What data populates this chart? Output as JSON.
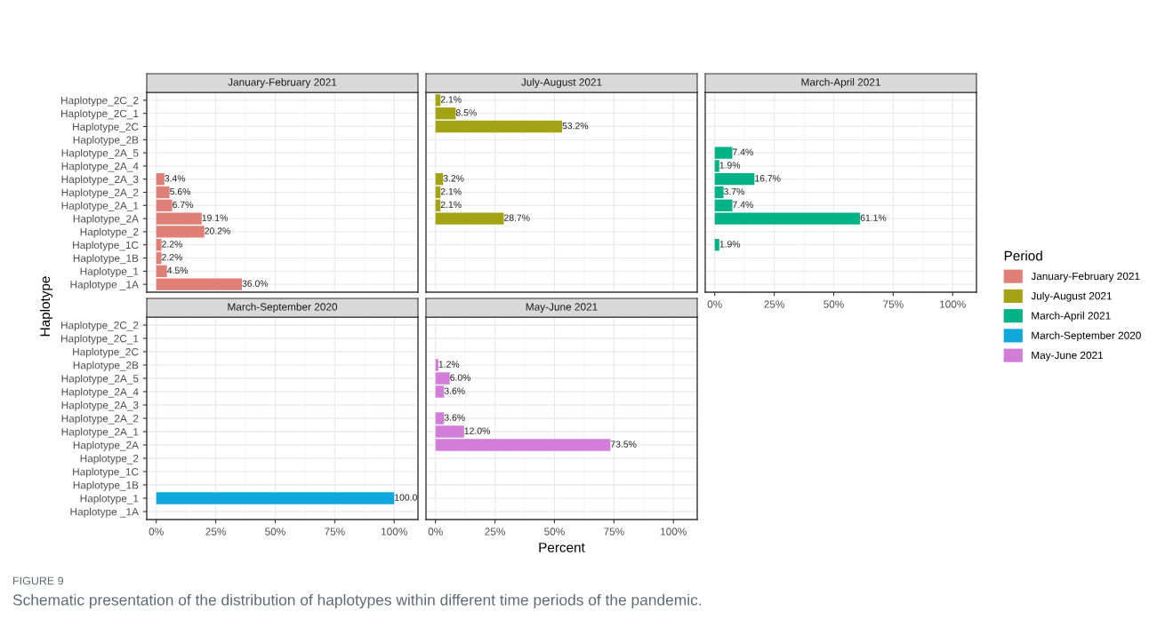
{
  "chart_data": [
    {
      "type": "bar",
      "orientation": "horizontal",
      "title": "January-February 2021",
      "ylabel": "Haplotype",
      "legend_title": "Period",
      "legend": "right",
      "grid": true,
      "tick_labels": "y",
      "xlim": [
        -4,
        110
      ],
      "xticks": [
        0,
        25,
        50,
        75,
        100
      ],
      "categories": [
        "Haplotype_2C_2",
        "Haplotype_2C_1",
        "Haplotype_2C",
        "Haplotype_2B",
        "Haplotype_2A_5",
        "Haplotype_2A_4",
        "Haplotype_2A_3",
        "Haplotype_2A_2",
        "Haplotype_2A_1",
        "Haplotype_2A",
        "Haplotype_2",
        "Haplotype_1C",
        "Haplotype_1B",
        "Haplotype_1",
        "Haplotype _1A"
      ],
      "series": [
        {
          "name": "January-February 2021",
          "color": "#e07f78",
          "values": [
            null,
            null,
            null,
            null,
            null,
            null,
            3.4,
            5.6,
            6.7,
            19.1,
            20.2,
            2.2,
            2.2,
            4.5,
            36.0
          ],
          "value_labels": [
            null,
            null,
            null,
            null,
            null,
            null,
            "3.4%",
            "5.6%",
            "6.7%",
            "19.1%",
            "20.2%",
            "2.2%",
            "2.2%",
            "4.5%",
            "36.0%"
          ]
        }
      ],
      "annotations": [
        "FIGURE 9",
        "Schematic presentation of the distribution of haplotypes within different time periods of the pandemic."
      ]
    },
    {
      "type": "bar",
      "orientation": "horizontal",
      "title": "July-August 2021",
      "legend": "right",
      "grid": true,
      "tick_labels": false,
      "xlim": [
        -4,
        110
      ],
      "xticks": [
        0,
        25,
        50,
        75,
        100
      ],
      "categories": [
        null,
        null,
        null,
        null,
        null,
        null,
        null,
        null,
        null,
        null,
        null,
        null,
        null,
        null,
        null
      ],
      "series": [
        {
          "name": "July-August 2021",
          "color": "#a3a313",
          "values": [
            2.1,
            8.5,
            53.2,
            null,
            null,
            null,
            3.2,
            2.1,
            2.1,
            28.7,
            null,
            null,
            null,
            null,
            null
          ],
          "value_labels": [
            "2.1%",
            "8.5%",
            "53.2%",
            null,
            null,
            null,
            "3.2%",
            "2.1%",
            "2.1%",
            "28.7%",
            null,
            null,
            null,
            null,
            null
          ]
        }
      ]
    },
    {
      "type": "bar",
      "orientation": "horizontal",
      "title": "March-April 2021",
      "legend": "right",
      "grid": true,
      "tick_labels": "x",
      "xlim": [
        -4,
        110
      ],
      "xticks": [
        {
          "value": 0,
          "label": "0%"
        },
        {
          "value": 25,
          "label": "25%"
        },
        {
          "value": 50,
          "label": "50%"
        },
        {
          "value": 75,
          "label": "75%"
        },
        {
          "value": 100,
          "label": "100%"
        }
      ],
      "categories": [
        null,
        null,
        null,
        null,
        null,
        null,
        null,
        null,
        null,
        null,
        null,
        null,
        null,
        null,
        null
      ],
      "series": [
        {
          "name": "March-April 2021",
          "color": "#00b386",
          "values": [
            null,
            null,
            null,
            null,
            7.4,
            1.9,
            16.7,
            3.7,
            7.4,
            61.1,
            null,
            1.9,
            null,
            null,
            null
          ],
          "value_labels": [
            null,
            null,
            null,
            null,
            "7.4%",
            "1.9%",
            "16.7%",
            "3.7%",
            "7.4%",
            "61.1%",
            null,
            "1.9%",
            null,
            null,
            null
          ]
        }
      ]
    },
    {
      "type": "bar",
      "orientation": "horizontal",
      "title": "March-September 2020",
      "legend": "right",
      "grid": true,
      "xlim": [
        -4,
        110
      ],
      "xticks": [
        {
          "value": 0,
          "label": "0%"
        },
        {
          "value": 25,
          "label": "25%"
        },
        {
          "value": 50,
          "label": "50%"
        },
        {
          "value": 75,
          "label": "75%"
        },
        {
          "value": 100,
          "label": "100%"
        }
      ],
      "categories": [
        "Haplotype_2C_2",
        "Haplotype_2C_1",
        "Haplotype_2C",
        "Haplotype_2B",
        "Haplotype_2A_5",
        "Haplotype_2A_4",
        "Haplotype_2A_3",
        "Haplotype_2A_2",
        "Haplotype_2A_1",
        "Haplotype_2A",
        "Haplotype_2",
        "Haplotype_1C",
        "Haplotype_1B",
        "Haplotype_1",
        "Haplotype _1A"
      ],
      "series": [
        {
          "name": "March-September 2020",
          "color": "#10a7db",
          "values": [
            null,
            null,
            null,
            null,
            null,
            null,
            null,
            null,
            null,
            null,
            null,
            null,
            null,
            100,
            null
          ],
          "value_labels": [
            null,
            null,
            null,
            null,
            null,
            null,
            null,
            null,
            null,
            null,
            null,
            null,
            null,
            "100.0",
            null
          ]
        }
      ]
    },
    {
      "type": "bar",
      "orientation": "horizontal",
      "title": "May-June 2021",
      "xlabel": "Percent",
      "legend": "right",
      "grid": true,
      "tick_labels": "x",
      "xlim": [
        -4,
        110
      ],
      "xticks": [
        {
          "value": 0,
          "label": "0%"
        },
        {
          "value": 25,
          "label": "25%"
        },
        {
          "value": 50,
          "label": "50%"
        },
        {
          "value": 75,
          "label": "75%"
        },
        {
          "value": 100,
          "label": "100%"
        }
      ],
      "categories": [
        null,
        null,
        null,
        null,
        null,
        null,
        null,
        null,
        null,
        null,
        null,
        null,
        null,
        null,
        null
      ],
      "series": [
        {
          "name": "May-June 2021",
          "color": "#d27ed8",
          "values": [
            null,
            null,
            null,
            1.2,
            6.0,
            3.6,
            null,
            3.6,
            12.0,
            73.5,
            null,
            null,
            null,
            null,
            null
          ],
          "value_labels": [
            null,
            null,
            null,
            "1.2%",
            "6.0%",
            "3.6%",
            null,
            "3.6%",
            "12.0%",
            "73.5%",
            null,
            null,
            null,
            null,
            null
          ]
        }
      ]
    }
  ]
}
